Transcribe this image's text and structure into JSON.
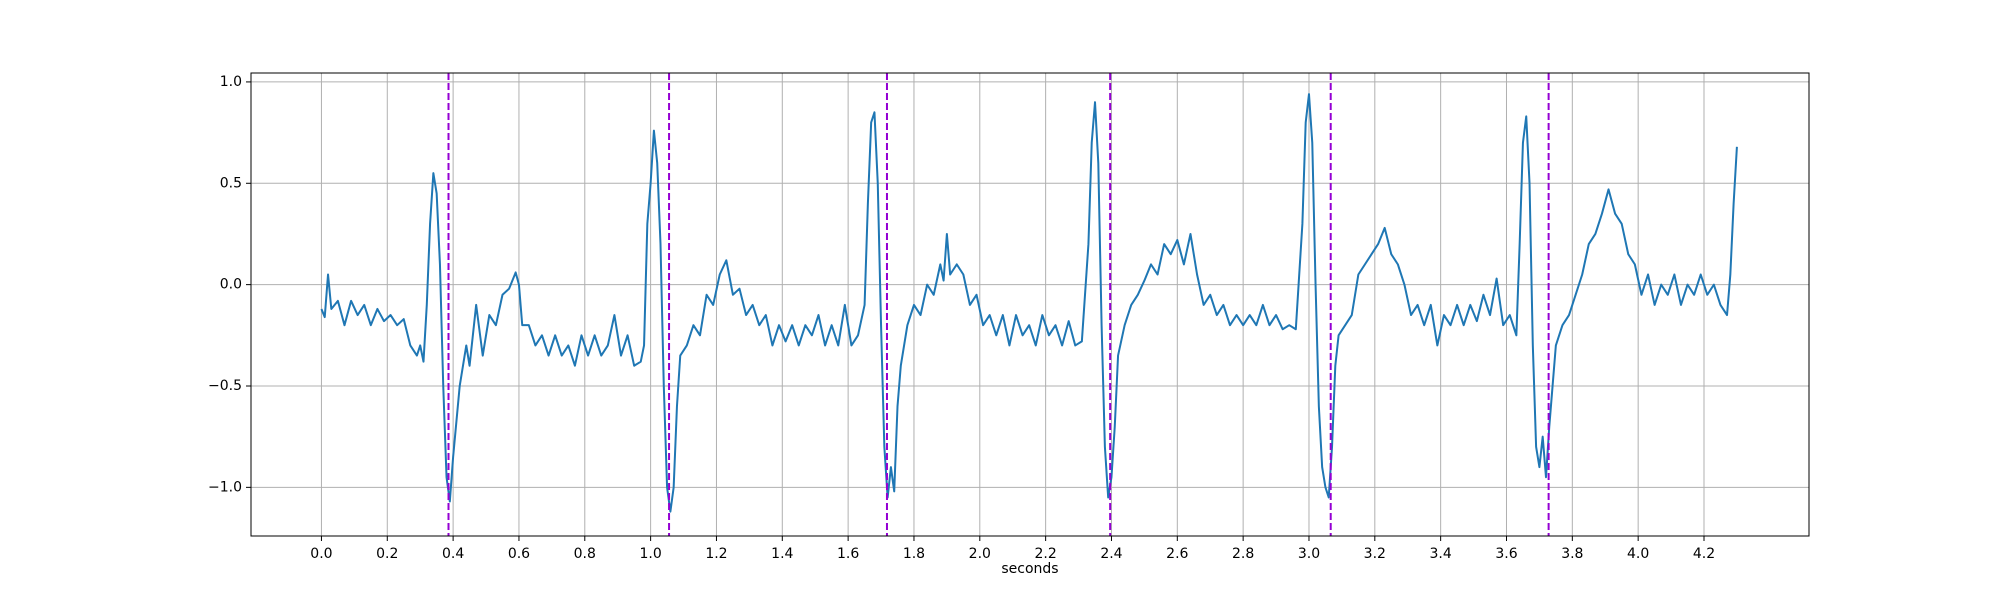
{
  "chart_data": {
    "type": "line",
    "xlabel": "seconds",
    "xlim": [
      -0.214,
      4.519
    ],
    "ylim": [
      -1.24,
      1.044
    ],
    "grid": true,
    "xticks": [
      {
        "value": 0,
        "label": "0.0"
      },
      0.2,
      0.4,
      0.6,
      0.8,
      {
        "value": 1,
        "label": "1.0"
      },
      1.2,
      1.4,
      1.6,
      1.8,
      {
        "value": 2,
        "label": "2.0"
      },
      2.2,
      2.4,
      2.6,
      2.8,
      {
        "value": 3,
        "label": "3.0"
      },
      3.2,
      3.4,
      3.6,
      3.8,
      {
        "value": 4,
        "label": "4.0"
      },
      4.2
    ],
    "yticks": [
      {
        "value": -1,
        "label": "−1.0"
      },
      {
        "value": -0.5,
        "label": "−0.5"
      },
      {
        "value": 0,
        "label": "0.0"
      },
      0.5,
      {
        "value": 1,
        "label": "1.0"
      }
    ],
    "vlines": {
      "color": "#9400d3",
      "x": [
        0.386,
        1.056,
        1.718,
        2.396,
        3.066,
        3.728
      ]
    },
    "x": [
      0.0,
      0.01,
      0.02,
      0.03,
      0.05,
      0.07,
      0.09,
      0.11,
      0.13,
      0.15,
      0.17,
      0.19,
      0.21,
      0.23,
      0.25,
      0.27,
      0.29,
      0.3,
      0.31,
      0.32,
      0.33,
      0.34,
      0.35,
      0.36,
      0.37,
      0.38,
      0.39,
      0.4,
      0.42,
      0.44,
      0.45,
      0.47,
      0.49,
      0.51,
      0.53,
      0.55,
      0.57,
      0.59,
      0.6,
      0.61,
      0.63,
      0.65,
      0.67,
      0.69,
      0.71,
      0.73,
      0.75,
      0.77,
      0.79,
      0.81,
      0.83,
      0.85,
      0.87,
      0.89,
      0.91,
      0.93,
      0.95,
      0.97,
      0.98,
      0.99,
      1.0,
      1.01,
      1.02,
      1.03,
      1.04,
      1.05,
      1.06,
      1.07,
      1.08,
      1.09,
      1.11,
      1.13,
      1.15,
      1.17,
      1.19,
      1.21,
      1.23,
      1.25,
      1.27,
      1.29,
      1.31,
      1.33,
      1.35,
      1.37,
      1.39,
      1.41,
      1.43,
      1.45,
      1.47,
      1.49,
      1.51,
      1.53,
      1.55,
      1.57,
      1.59,
      1.61,
      1.63,
      1.65,
      1.66,
      1.67,
      1.68,
      1.69,
      1.7,
      1.71,
      1.72,
      1.73,
      1.74,
      1.75,
      1.76,
      1.78,
      1.8,
      1.82,
      1.84,
      1.86,
      1.88,
      1.89,
      1.9,
      1.91,
      1.93,
      1.95,
      1.97,
      1.99,
      2.01,
      2.03,
      2.05,
      2.07,
      2.09,
      2.11,
      2.13,
      2.15,
      2.17,
      2.19,
      2.21,
      2.23,
      2.25,
      2.27,
      2.29,
      2.31,
      2.33,
      2.34,
      2.35,
      2.36,
      2.37,
      2.38,
      2.39,
      2.4,
      2.41,
      2.42,
      2.44,
      2.46,
      2.48,
      2.5,
      2.52,
      2.54,
      2.56,
      2.58,
      2.6,
      2.62,
      2.64,
      2.66,
      2.68,
      2.7,
      2.72,
      2.74,
      2.76,
      2.78,
      2.8,
      2.82,
      2.84,
      2.86,
      2.88,
      2.9,
      2.92,
      2.94,
      2.96,
      2.98,
      2.99,
      3.0,
      3.01,
      3.02,
      3.03,
      3.04,
      3.05,
      3.06,
      3.07,
      3.08,
      3.09,
      3.11,
      3.13,
      3.15,
      3.17,
      3.19,
      3.21,
      3.23,
      3.25,
      3.27,
      3.29,
      3.31,
      3.33,
      3.35,
      3.37,
      3.39,
      3.41,
      3.43,
      3.45,
      3.47,
      3.49,
      3.51,
      3.53,
      3.55,
      3.57,
      3.59,
      3.61,
      3.63,
      3.64,
      3.65,
      3.66,
      3.67,
      3.68,
      3.69,
      3.7,
      3.71,
      3.72,
      3.73,
      3.74,
      3.75,
      3.77,
      3.79,
      3.81,
      3.83,
      3.85,
      3.87,
      3.89,
      3.91,
      3.93,
      3.95,
      3.97,
      3.99,
      4.01,
      4.03,
      4.05,
      4.07,
      4.09,
      4.11,
      4.13,
      4.15,
      4.17,
      4.19,
      4.21,
      4.23,
      4.25,
      4.27,
      4.28,
      4.29,
      4.3
    ],
    "series": [
      {
        "color": "#1f77b4",
        "values": [
          -0.12,
          -0.16,
          0.05,
          -0.12,
          -0.08,
          -0.2,
          -0.08,
          -0.15,
          -0.1,
          -0.2,
          -0.12,
          -0.18,
          -0.15,
          -0.2,
          -0.17,
          -0.3,
          -0.35,
          -0.3,
          -0.38,
          -0.1,
          0.3,
          0.55,
          0.45,
          0.1,
          -0.5,
          -0.95,
          -1.07,
          -0.85,
          -0.5,
          -0.3,
          -0.4,
          -0.1,
          -0.35,
          -0.15,
          -0.2,
          -0.05,
          -0.02,
          0.06,
          0.0,
          -0.2,
          -0.2,
          -0.3,
          -0.25,
          -0.35,
          -0.25,
          -0.35,
          -0.3,
          -0.4,
          -0.25,
          -0.35,
          -0.25,
          -0.35,
          -0.3,
          -0.15,
          -0.35,
          -0.25,
          -0.4,
          -0.38,
          -0.3,
          0.3,
          0.5,
          0.76,
          0.6,
          0.2,
          -0.5,
          -1.0,
          -1.12,
          -1.0,
          -0.6,
          -0.35,
          -0.3,
          -0.2,
          -0.25,
          -0.05,
          -0.1,
          0.05,
          0.12,
          -0.05,
          -0.02,
          -0.15,
          -0.1,
          -0.2,
          -0.15,
          -0.3,
          -0.2,
          -0.28,
          -0.2,
          -0.3,
          -0.2,
          -0.25,
          -0.15,
          -0.3,
          -0.2,
          -0.3,
          -0.1,
          -0.3,
          -0.25,
          -0.1,
          0.4,
          0.8,
          0.85,
          0.5,
          -0.2,
          -0.8,
          -1.05,
          -0.9,
          -1.02,
          -0.6,
          -0.4,
          -0.2,
          -0.1,
          -0.15,
          0.0,
          -0.05,
          0.1,
          0.02,
          0.25,
          0.05,
          0.1,
          0.05,
          -0.1,
          -0.05,
          -0.2,
          -0.15,
          -0.25,
          -0.15,
          -0.3,
          -0.15,
          -0.25,
          -0.2,
          -0.3,
          -0.15,
          -0.25,
          -0.2,
          -0.3,
          -0.18,
          -0.3,
          -0.28,
          0.2,
          0.7,
          0.9,
          0.6,
          -0.2,
          -0.8,
          -1.05,
          -0.95,
          -0.7,
          -0.35,
          -0.2,
          -0.1,
          -0.05,
          0.02,
          0.1,
          0.05,
          0.2,
          0.15,
          0.22,
          0.1,
          0.25,
          0.05,
          -0.1,
          -0.05,
          -0.15,
          -0.1,
          -0.2,
          -0.15,
          -0.2,
          -0.15,
          -0.2,
          -0.1,
          -0.2,
          -0.15,
          -0.22,
          -0.2,
          -0.22,
          0.3,
          0.8,
          0.94,
          0.7,
          0.0,
          -0.6,
          -0.9,
          -1.0,
          -1.05,
          -0.8,
          -0.4,
          -0.25,
          -0.2,
          -0.15,
          0.05,
          0.1,
          0.15,
          0.2,
          0.28,
          0.15,
          0.1,
          0.0,
          -0.15,
          -0.1,
          -0.2,
          -0.1,
          -0.3,
          -0.15,
          -0.2,
          -0.1,
          -0.2,
          -0.1,
          -0.18,
          -0.05,
          -0.15,
          0.03,
          -0.2,
          -0.15,
          -0.25,
          0.2,
          0.7,
          0.83,
          0.5,
          -0.3,
          -0.8,
          -0.9,
          -0.75,
          -0.95,
          -0.7,
          -0.5,
          -0.3,
          -0.2,
          -0.15,
          -0.05,
          0.05,
          0.2,
          0.25,
          0.35,
          0.47,
          0.35,
          0.3,
          0.15,
          0.1,
          -0.05,
          0.05,
          -0.1,
          0.0,
          -0.05,
          0.05,
          -0.1,
          0.0,
          -0.05,
          0.05,
          -0.05,
          0.0,
          -0.1,
          -0.15,
          0.05,
          0.4,
          0.68
        ]
      }
    ]
  }
}
